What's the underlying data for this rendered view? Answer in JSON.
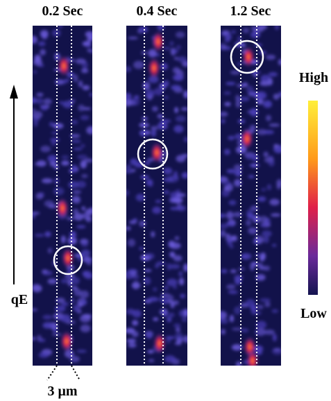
{
  "panels": [
    {
      "title": "0.2 Sec"
    },
    {
      "title": "0.4 Sec"
    },
    {
      "title": "1.2 Sec"
    }
  ],
  "colorbar": {
    "high": "High",
    "low": "Low"
  },
  "arrow_label": "qE",
  "scale_label": "3 μm"
}
